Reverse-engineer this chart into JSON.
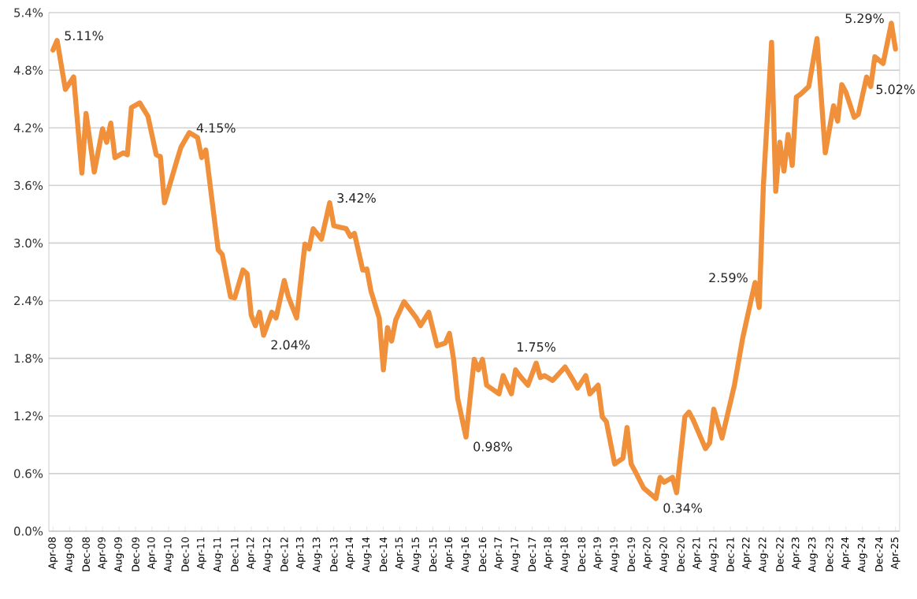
{
  "chart_data": {
    "type": "line",
    "x": [
      "2008-04",
      "2008-05",
      "2008-07",
      "2008-09",
      "2008-11",
      "2008-12",
      "2009-02",
      "2009-04",
      "2009-05",
      "2009-06",
      "2009-07",
      "2009-09",
      "2009-10",
      "2009-11",
      "2010-01",
      "2010-03",
      "2010-05",
      "2010-06",
      "2010-07",
      "2010-10",
      "2010-11",
      "2011-01",
      "2011-03",
      "2011-04",
      "2011-05",
      "2011-06",
      "2011-08",
      "2011-09",
      "2011-11",
      "2011-12",
      "2012-02",
      "2012-03",
      "2012-04",
      "2012-05",
      "2012-06",
      "2012-07",
      "2012-09",
      "2012-10",
      "2012-12",
      "2013-01",
      "2013-03",
      "2013-05",
      "2013-06",
      "2013-07",
      "2013-09",
      "2013-11",
      "2013-12",
      "2014-03",
      "2014-04",
      "2014-05",
      "2014-07",
      "2014-08",
      "2014-09",
      "2014-11",
      "2014-12",
      "2015-01",
      "2015-02",
      "2015-03",
      "2015-05",
      "2015-08",
      "2015-09",
      "2015-11",
      "2016-01",
      "2016-03",
      "2016-04",
      "2016-05",
      "2016-06",
      "2016-08",
      "2016-10",
      "2016-11",
      "2016-12",
      "2017-01",
      "2017-04",
      "2017-05",
      "2017-07",
      "2017-08",
      "2017-09",
      "2017-11",
      "2018-01",
      "2018-02",
      "2018-03",
      "2018-05",
      "2018-08",
      "2018-10",
      "2018-11",
      "2019-01",
      "2019-02",
      "2019-04",
      "2019-05",
      "2019-06",
      "2019-08",
      "2019-10",
      "2019-11",
      "2019-12",
      "2020-01",
      "2020-03",
      "2020-06",
      "2020-07",
      "2020-08",
      "2020-10",
      "2020-11",
      "2021-01",
      "2021-02",
      "2021-03",
      "2021-06",
      "2021-07",
      "2021-08",
      "2021-10",
      "2022-01",
      "2022-03",
      "2022-05",
      "2022-06",
      "2022-07",
      "2022-08",
      "2022-10",
      "2022-11",
      "2022-12",
      "2023-01",
      "2023-02",
      "2023-03",
      "2023-04",
      "2023-05",
      "2023-07",
      "2023-09",
      "2023-11",
      "2024-01",
      "2024-02",
      "2024-03",
      "2024-04",
      "2024-06",
      "2024-07",
      "2024-09",
      "2024-10",
      "2024-11",
      "2025-01",
      "2025-03",
      "2025-04"
    ],
    "series": [
      {
        "color": "#f0903a",
        "values": [
          5.01,
          5.11,
          4.6,
          4.73,
          3.73,
          4.35,
          3.74,
          4.19,
          4.05,
          4.25,
          3.89,
          3.94,
          3.92,
          4.41,
          4.46,
          4.32,
          3.92,
          3.9,
          3.42,
          3.86,
          4.0,
          4.15,
          4.1,
          3.89,
          3.97,
          3.62,
          2.93,
          2.88,
          2.44,
          2.43,
          2.72,
          2.68,
          2.25,
          2.14,
          2.28,
          2.04,
          2.28,
          2.22,
          2.61,
          2.44,
          2.22,
          2.99,
          2.94,
          3.15,
          3.04,
          3.42,
          3.18,
          3.15,
          3.07,
          3.1,
          2.72,
          2.73,
          2.5,
          2.22,
          1.68,
          2.12,
          1.98,
          2.2,
          2.39,
          2.22,
          2.14,
          2.28,
          1.93,
          1.96,
          2.06,
          1.79,
          1.38,
          0.98,
          1.79,
          1.68,
          1.79,
          1.52,
          1.43,
          1.62,
          1.43,
          1.68,
          1.62,
          1.52,
          1.75,
          1.6,
          1.62,
          1.57,
          1.71,
          1.57,
          1.49,
          1.62,
          1.43,
          1.52,
          1.19,
          1.14,
          0.7,
          0.76,
          1.08,
          0.7,
          0.62,
          0.45,
          0.34,
          0.56,
          0.51,
          0.56,
          0.4,
          1.19,
          1.24,
          1.16,
          0.86,
          0.92,
          1.27,
          0.97,
          1.52,
          2.01,
          2.4,
          2.59,
          2.33,
          3.59,
          5.09,
          3.54,
          4.05,
          3.75,
          4.13,
          3.81,
          4.52,
          4.55,
          4.63,
          5.13,
          3.94,
          4.43,
          4.27,
          4.65,
          4.57,
          4.31,
          4.34,
          4.73,
          4.63,
          4.94,
          4.87,
          5.29,
          5.02
        ]
      }
    ],
    "annotations": [
      {
        "text": "5.11%",
        "x": "2008-05",
        "y": 5.11
      },
      {
        "text": "4.15%",
        "x": "2011-01",
        "y": 4.15
      },
      {
        "text": "2.04%",
        "x": "2012-07",
        "y": 2.04
      },
      {
        "text": "3.42%",
        "x": "2013-11",
        "y": 3.42
      },
      {
        "text": "0.98%",
        "x": "2016-08",
        "y": 0.98
      },
      {
        "text": "1.75%",
        "x": "2018-01",
        "y": 1.75
      },
      {
        "text": "0.34%",
        "x": "2020-06",
        "y": 0.34
      },
      {
        "text": "2.59%",
        "x": "2022-06",
        "y": 2.59
      },
      {
        "text": "5.29%",
        "x": "2025-03",
        "y": 5.29
      },
      {
        "text": "5.02%",
        "x": "2025-04",
        "y": 5.02
      }
    ],
    "xlim": [
      "2008-03",
      "2025-05"
    ],
    "xticks": [
      {
        "value": "2008-04",
        "label": "Apr-08"
      },
      {
        "value": "2008-08",
        "label": "Aug-08"
      },
      {
        "value": "2008-12",
        "label": "Dec-08"
      },
      {
        "value": "2009-04",
        "label": "Apr-09"
      },
      {
        "value": "2009-08",
        "label": "Aug-09"
      },
      {
        "value": "2009-12",
        "label": "Dec-09"
      },
      {
        "value": "2010-04",
        "label": "Apr-10"
      },
      {
        "value": "2010-08",
        "label": "Aug-10"
      },
      {
        "value": "2010-12",
        "label": "Dec-10"
      },
      {
        "value": "2011-04",
        "label": "Apr-11"
      },
      {
        "value": "2011-08",
        "label": "Aug-11"
      },
      {
        "value": "2011-12",
        "label": "Dec-11"
      },
      {
        "value": "2012-04",
        "label": "Apr-12"
      },
      {
        "value": "2012-08",
        "label": "Aug-12"
      },
      {
        "value": "2012-12",
        "label": "Dec-12"
      },
      {
        "value": "2013-04",
        "label": "Apr-13"
      },
      {
        "value": "2013-08",
        "label": "Aug-13"
      },
      {
        "value": "2013-12",
        "label": "Dec-13"
      },
      {
        "value": "2014-04",
        "label": "Apr-14"
      },
      {
        "value": "2014-08",
        "label": "Aug-14"
      },
      {
        "value": "2014-12",
        "label": "Dec-14"
      },
      {
        "value": "2015-04",
        "label": "Apr-15"
      },
      {
        "value": "2015-08",
        "label": "Aug-15"
      },
      {
        "value": "2015-12",
        "label": "Dec-15"
      },
      {
        "value": "2016-04",
        "label": "Apr-16"
      },
      {
        "value": "2016-08",
        "label": "Aug-16"
      },
      {
        "value": "2016-12",
        "label": "Dec-16"
      },
      {
        "value": "2017-04",
        "label": "Apr-17"
      },
      {
        "value": "2017-08",
        "label": "Aug-17"
      },
      {
        "value": "2017-12",
        "label": "Dec-17"
      },
      {
        "value": "2018-04",
        "label": "Apr-18"
      },
      {
        "value": "2018-08",
        "label": "Aug-18"
      },
      {
        "value": "2018-12",
        "label": "Dec-18"
      },
      {
        "value": "2019-04",
        "label": "Apr-19"
      },
      {
        "value": "2019-08",
        "label": "Aug-19"
      },
      {
        "value": "2019-12",
        "label": "Dec-19"
      },
      {
        "value": "2020-04",
        "label": "Apr-20"
      },
      {
        "value": "2020-08",
        "label": "Aug-20"
      },
      {
        "value": "2020-12",
        "label": "Dec-20"
      },
      {
        "value": "2021-04",
        "label": "Apr-21"
      },
      {
        "value": "2021-08",
        "label": "Aug-21"
      },
      {
        "value": "2021-12",
        "label": "Dec-21"
      },
      {
        "value": "2022-04",
        "label": "Apr-22"
      },
      {
        "value": "2022-08",
        "label": "Aug-22"
      },
      {
        "value": "2022-12",
        "label": "Dec-22"
      },
      {
        "value": "2023-04",
        "label": "Apr-23"
      },
      {
        "value": "2023-08",
        "label": "Aug-23"
      },
      {
        "value": "2023-12",
        "label": "Dec-23"
      },
      {
        "value": "2024-04",
        "label": "Apr-24"
      },
      {
        "value": "2024-08",
        "label": "Aug-24"
      },
      {
        "value": "2024-12",
        "label": "Dec-24"
      },
      {
        "value": "2025-04",
        "label": "Apr-25"
      }
    ],
    "ylim": [
      0,
      5.4
    ],
    "yticks": [
      {
        "value": 0,
        "label": "0.0%"
      },
      {
        "value": 0.6,
        "label": "0.6%"
      },
      {
        "value": 1.2,
        "label": "1.2%"
      },
      {
        "value": 1.8,
        "label": "1.8%"
      },
      {
        "value": 2.4,
        "label": "2.4%"
      },
      {
        "value": 3.0,
        "label": "3.0%"
      },
      {
        "value": 3.6,
        "label": "3.6%"
      },
      {
        "value": 4.2,
        "label": "4.2%"
      },
      {
        "value": 4.8,
        "label": "4.8%"
      },
      {
        "value": 5.4,
        "label": "5.4%"
      }
    ],
    "grid": "y",
    "line_style": "solid"
  }
}
